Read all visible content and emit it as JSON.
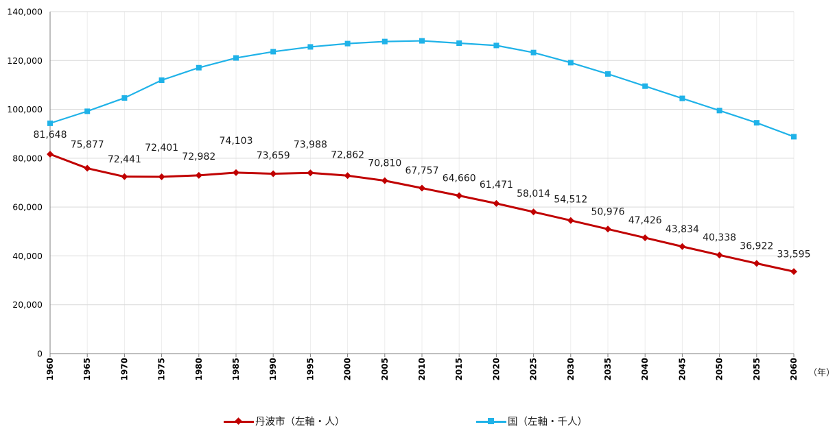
{
  "chart_data": {
    "type": "line",
    "title": "",
    "xlabel": "",
    "ylabel": "",
    "x_unit_label": "（年）",
    "x": [
      "1960",
      "1965",
      "1970",
      "1975",
      "1980",
      "1985",
      "1990",
      "1995",
      "2000",
      "2005",
      "2010",
      "2015",
      "2020",
      "2025",
      "2030",
      "2035",
      "2040",
      "2045",
      "2050",
      "2055",
      "2060"
    ],
    "ylim": [
      0,
      140000
    ],
    "yticks": [
      "0",
      "20,000",
      "40,000",
      "60,000",
      "80,000",
      "100,000",
      "120,000",
      "140,000"
    ],
    "grid": true,
    "legend_position": "bottom",
    "series": [
      {
        "name": "丹波市（左軸・人）",
        "color": "#C00000",
        "marker": "diamond",
        "values": [
          81648,
          75877,
          72441,
          72401,
          72982,
          74103,
          73659,
          73988,
          72862,
          70810,
          67757,
          64660,
          61471,
          58014,
          54512,
          50976,
          47426,
          43834,
          40338,
          36922,
          33595
        ],
        "data_labels": [
          "81,648",
          "75,877",
          "72,441",
          "72,401",
          "72,982",
          "74,103",
          "73,659",
          "73,988",
          "72,862",
          "70,810",
          "67,757",
          "64,660",
          "61,471",
          "58,014",
          "54,512",
          "50,976",
          "47,426",
          "43,834",
          "40,338",
          "36,922",
          "33,595"
        ]
      },
      {
        "name": "国（左軸・千人）",
        "color": "#1FB2E8",
        "marker": "square",
        "values": [
          94302,
          99209,
          104665,
          111940,
          117060,
          121049,
          123611,
          125570,
          126926,
          127768,
          128057,
          127095,
          126146,
          123262,
          119125,
          114500,
          109500,
          104500,
          99500,
          94500,
          88808
        ]
      }
    ]
  }
}
